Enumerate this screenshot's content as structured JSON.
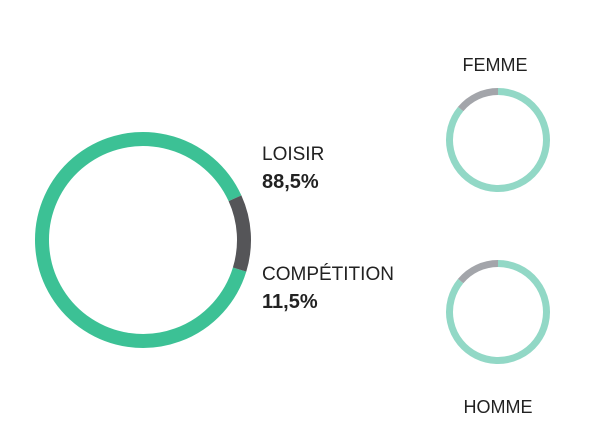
{
  "chart_data": [
    {
      "type": "pie",
      "style": "donut",
      "categories": [
        "LOISIR",
        "COMPÉTITION"
      ],
      "values": [
        88.5,
        11.5
      ],
      "value_labels": [
        "88,5%",
        "11,5%"
      ],
      "unit": "%",
      "colors": {
        "LOISIR": "#3cc195",
        "COMPÉTITION": "#555558"
      },
      "legend": "right"
    },
    {
      "type": "pie",
      "style": "donut",
      "label": "FEMME",
      "categories": [
        "LOISIR",
        "COMPÉTITION"
      ],
      "values": [
        86,
        14
      ],
      "unit": "%",
      "colors": {
        "LOISIR": "#92d8c6",
        "COMPÉTITION": "#a3a5aa"
      }
    },
    {
      "type": "pie",
      "style": "donut",
      "label": "HOMME",
      "categories": [
        "LOISIR",
        "COMPÉTITION"
      ],
      "values": [
        86,
        14
      ],
      "unit": "%",
      "colors": {
        "LOISIR": "#92d8c6",
        "COMPÉTITION": "#a3a5aa"
      }
    }
  ]
}
